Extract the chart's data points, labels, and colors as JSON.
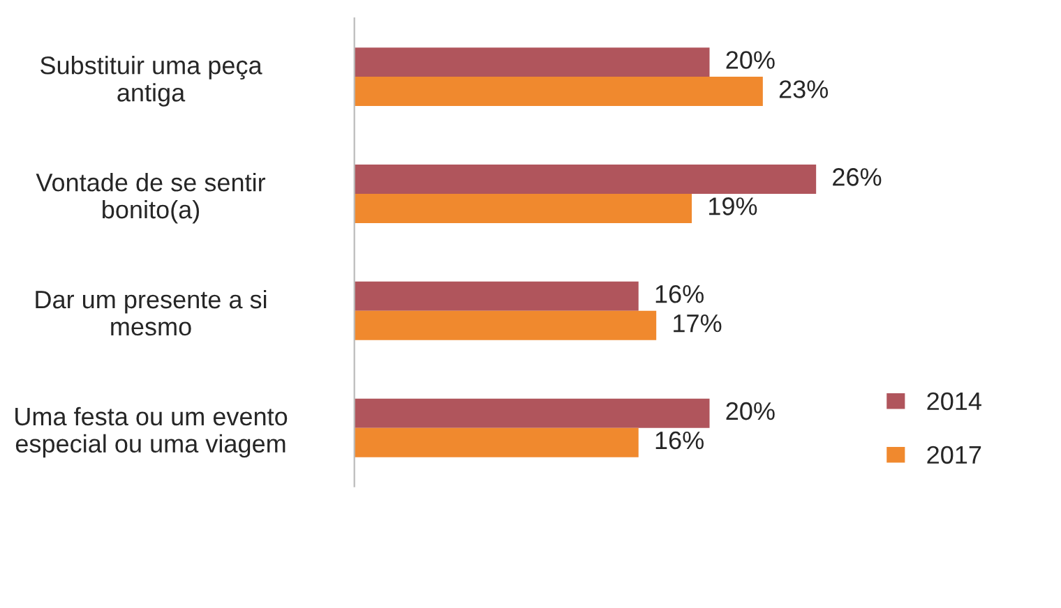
{
  "chart_data": {
    "type": "bar",
    "orientation": "horizontal",
    "categories": [
      "Substituir uma peça antiga",
      "Vontade de se sentir bonito(a)",
      "Dar um presente a si mesmo",
      "Uma festa ou um evento especial ou uma viagem"
    ],
    "series": [
      {
        "name": "2014",
        "color": "#b0555c",
        "values": [
          20,
          26,
          16,
          20
        ],
        "value_labels": [
          "20%",
          "26%",
          "16%",
          "20%"
        ]
      },
      {
        "name": "2017",
        "color": "#f0892e",
        "values": [
          23,
          19,
          17,
          16
        ],
        "value_labels": [
          "23%",
          "19%",
          "17%",
          "16%"
        ]
      }
    ],
    "legend": "right",
    "grid": false
  }
}
